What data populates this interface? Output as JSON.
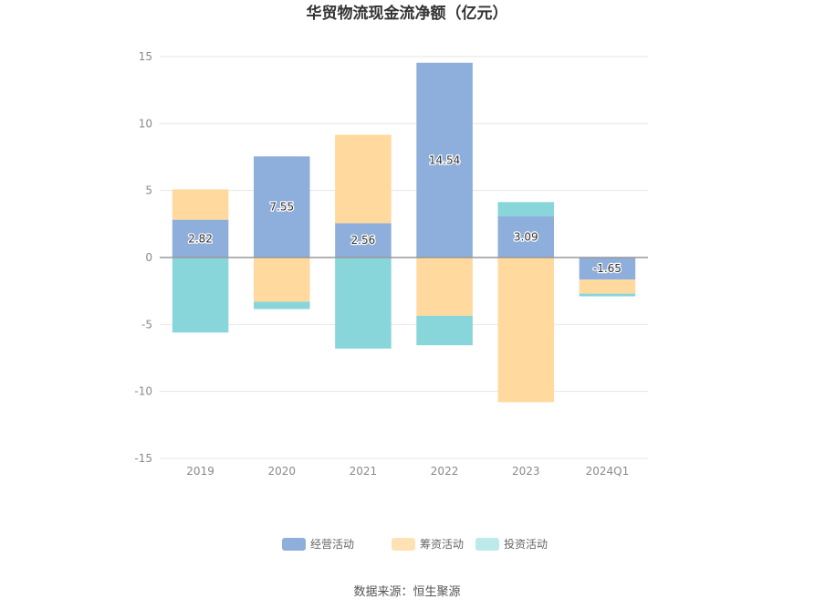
{
  "chart_data": {
    "type": "bar",
    "stacked": true,
    "title": "华贸物流现金流净额（亿元）",
    "categories": [
      "2019",
      "2020",
      "2021",
      "2022",
      "2023",
      "2024Q1"
    ],
    "series": [
      {
        "name": "经营活动",
        "color": "#8eaedb",
        "values": [
          2.82,
          7.55,
          2.56,
          14.54,
          3.09,
          -1.65
        ]
      },
      {
        "name": "筹资活动",
        "color": "#ffd99e",
        "values": [
          2.27,
          -3.3,
          6.6,
          -4.35,
          -10.8,
          -1.05
        ]
      },
      {
        "name": "投资活动",
        "color": "#88d6da",
        "values": [
          -5.6,
          -0.55,
          -6.8,
          -2.2,
          1.05,
          -0.2
        ]
      }
    ],
    "data_labels_series": "经营活动",
    "ylim": [
      -15,
      15
    ],
    "yticks": [
      15,
      10,
      5,
      0,
      -5,
      -10,
      -15
    ],
    "grid": true,
    "legend": "bottom",
    "legend_colors": [
      "#8eaedb",
      "#ffe2b3",
      "#bde9eb"
    ]
  },
  "source": "数据来源：恒生聚源"
}
